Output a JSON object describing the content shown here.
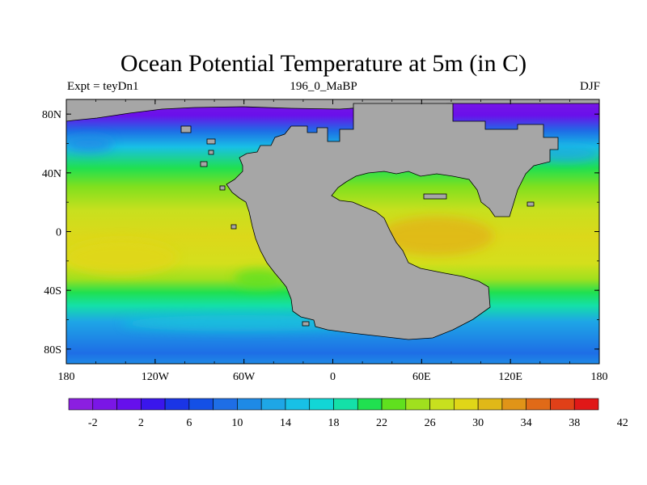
{
  "title": "Ocean Potential Temperature at 5m (in C)",
  "subtitle_left": "Expt = teyDn1",
  "subtitle_center": "196_0_MaBP",
  "subtitle_right": "DJF",
  "colors": {
    "land": "#a6a6a6",
    "palette": [
      "#8b1fe0",
      "#7a16e6",
      "#6610ec",
      "#3a16ec",
      "#1a35e6",
      "#1450e6",
      "#1e6ee6",
      "#1e8ae6",
      "#1ea6e6",
      "#18c0e6",
      "#12d6d6",
      "#14e0a8",
      "#20e050",
      "#60e01e",
      "#a0e01e",
      "#c8e01e",
      "#e0d618",
      "#e0b818",
      "#e09418",
      "#e06a18",
      "#e04018",
      "#e01818"
    ]
  },
  "map": {
    "lon_range": [
      -180,
      180
    ],
    "lat_range": [
      -90,
      90
    ],
    "lon_ticks": [
      "180",
      "120W",
      "60W",
      "0",
      "60E",
      "120E",
      "180"
    ],
    "lat_ticks": [
      "80N",
      "40N",
      "0",
      "40S",
      "80S"
    ]
  },
  "colorbar": {
    "labels": [
      "-2",
      "2",
      "6",
      "10",
      "14",
      "18",
      "22",
      "26",
      "30",
      "34",
      "38",
      "42"
    ]
  }
}
